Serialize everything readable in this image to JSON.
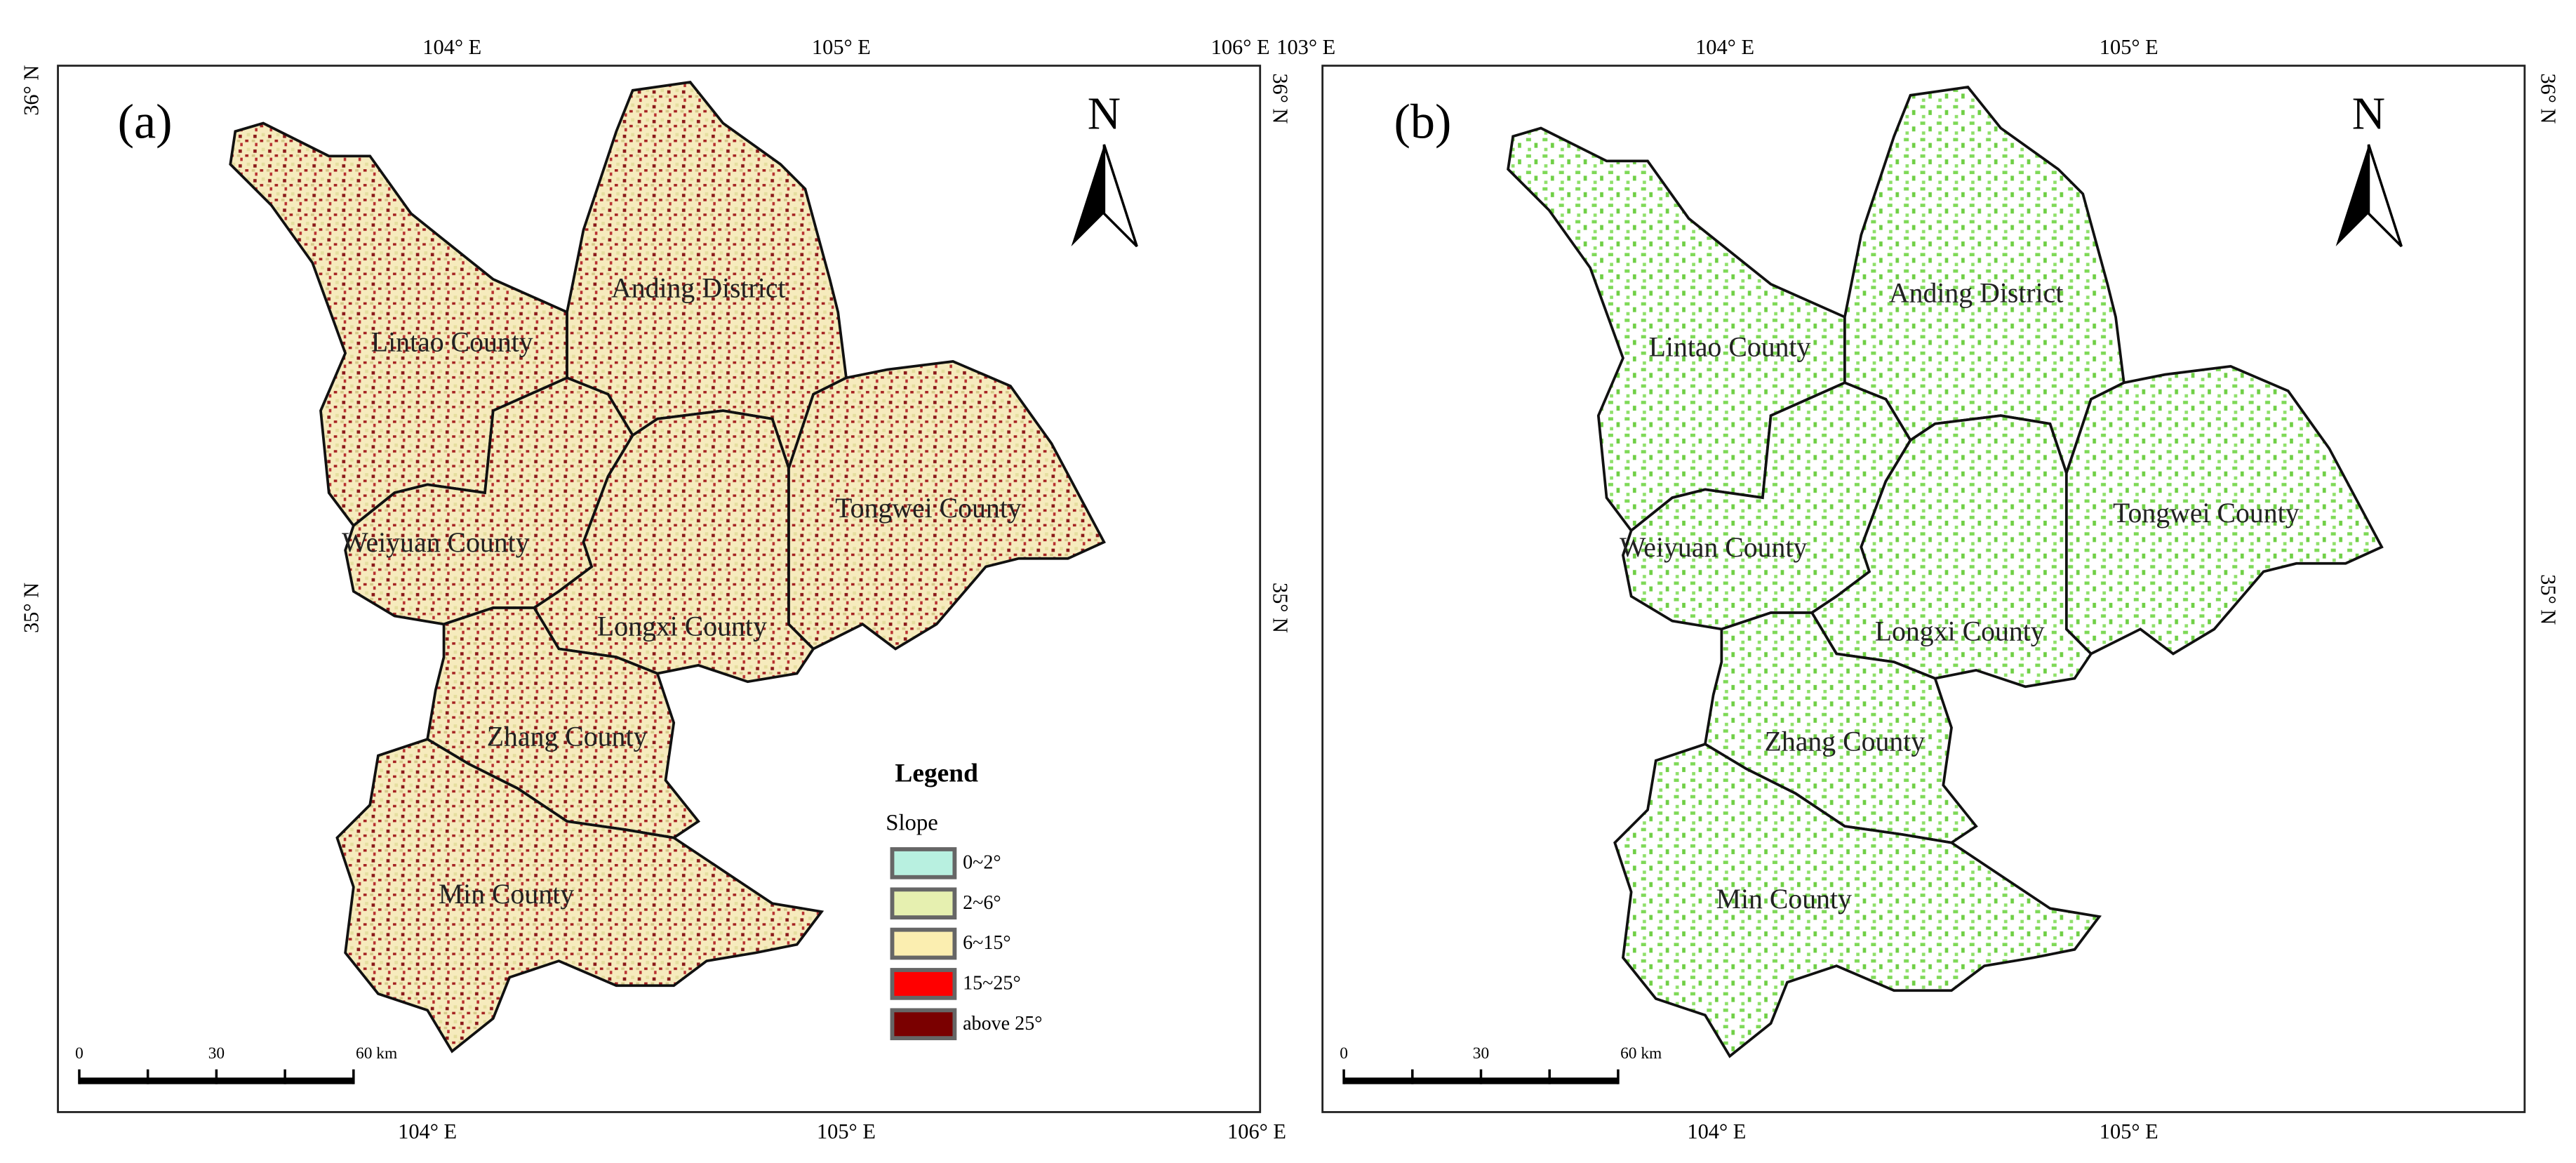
{
  "panels": [
    {
      "label": "(a)",
      "top_labels": [
        "104° E",
        "105° E",
        "106° E"
      ],
      "bottom_labels": [
        "104° E",
        "105° E",
        "106° E"
      ],
      "left_labels": [
        "36° N",
        "35° N"
      ],
      "right_labels": [
        "36° N",
        "35° N"
      ],
      "counties": [
        "Lintao County",
        "Anding District",
        "Weiyuan County",
        "Longxi County",
        "Tongwei County",
        "Zhang County",
        "Min County"
      ],
      "north": "N",
      "scale_bar": [
        "0",
        "30",
        "60 km"
      ],
      "legend": {
        "title": "Legend",
        "subtitle": "Slope",
        "items": [
          {
            "label": "0~2°",
            "color": "#b8f0e0"
          },
          {
            "label": "2~6°",
            "color": "#e6f0b0"
          },
          {
            "label": "6~15°",
            "color": "#fbeeb0"
          },
          {
            "label": "15~25°",
            "color": "#ff0000"
          },
          {
            "label": "above 25°",
            "color": "#7a0000"
          }
        ]
      }
    },
    {
      "label": "(b)",
      "top_labels": [
        "103° E",
        "104° E",
        "105° E"
      ],
      "bottom_labels": [
        "104° E",
        "105° E"
      ],
      "right_labels": [
        "36° N",
        "35° N"
      ],
      "counties": [
        "Lintao County",
        "Anding District",
        "Weiyuan County",
        "Longxi County",
        "Tongwei County",
        "Zhang County",
        "Min County"
      ],
      "north": "N",
      "scale_bar": [
        "0",
        "30",
        "60 km"
      ]
    }
  ]
}
